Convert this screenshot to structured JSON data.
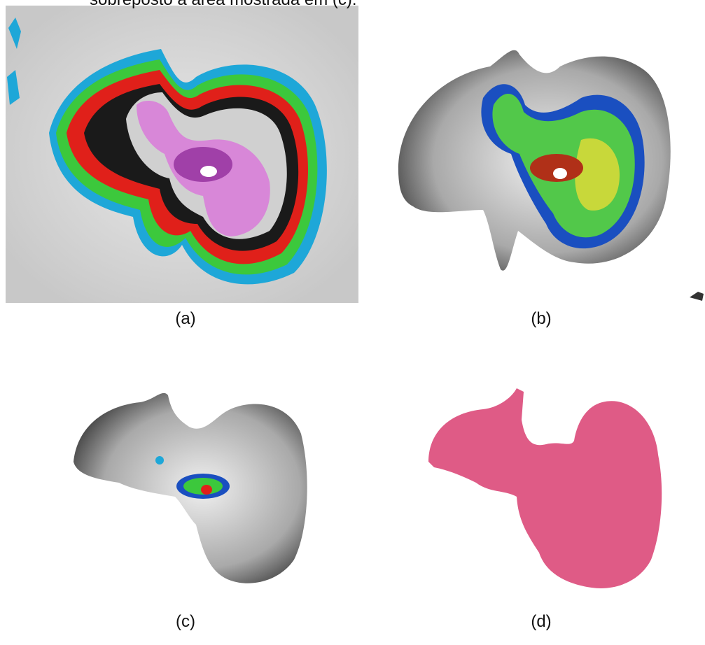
{
  "text_fragment": "sobreposto à área mostrada em (c).",
  "panels": [
    {
      "label": "(a)"
    },
    {
      "label": "(b)"
    },
    {
      "label": "(c)"
    },
    {
      "label": "(d)"
    }
  ]
}
